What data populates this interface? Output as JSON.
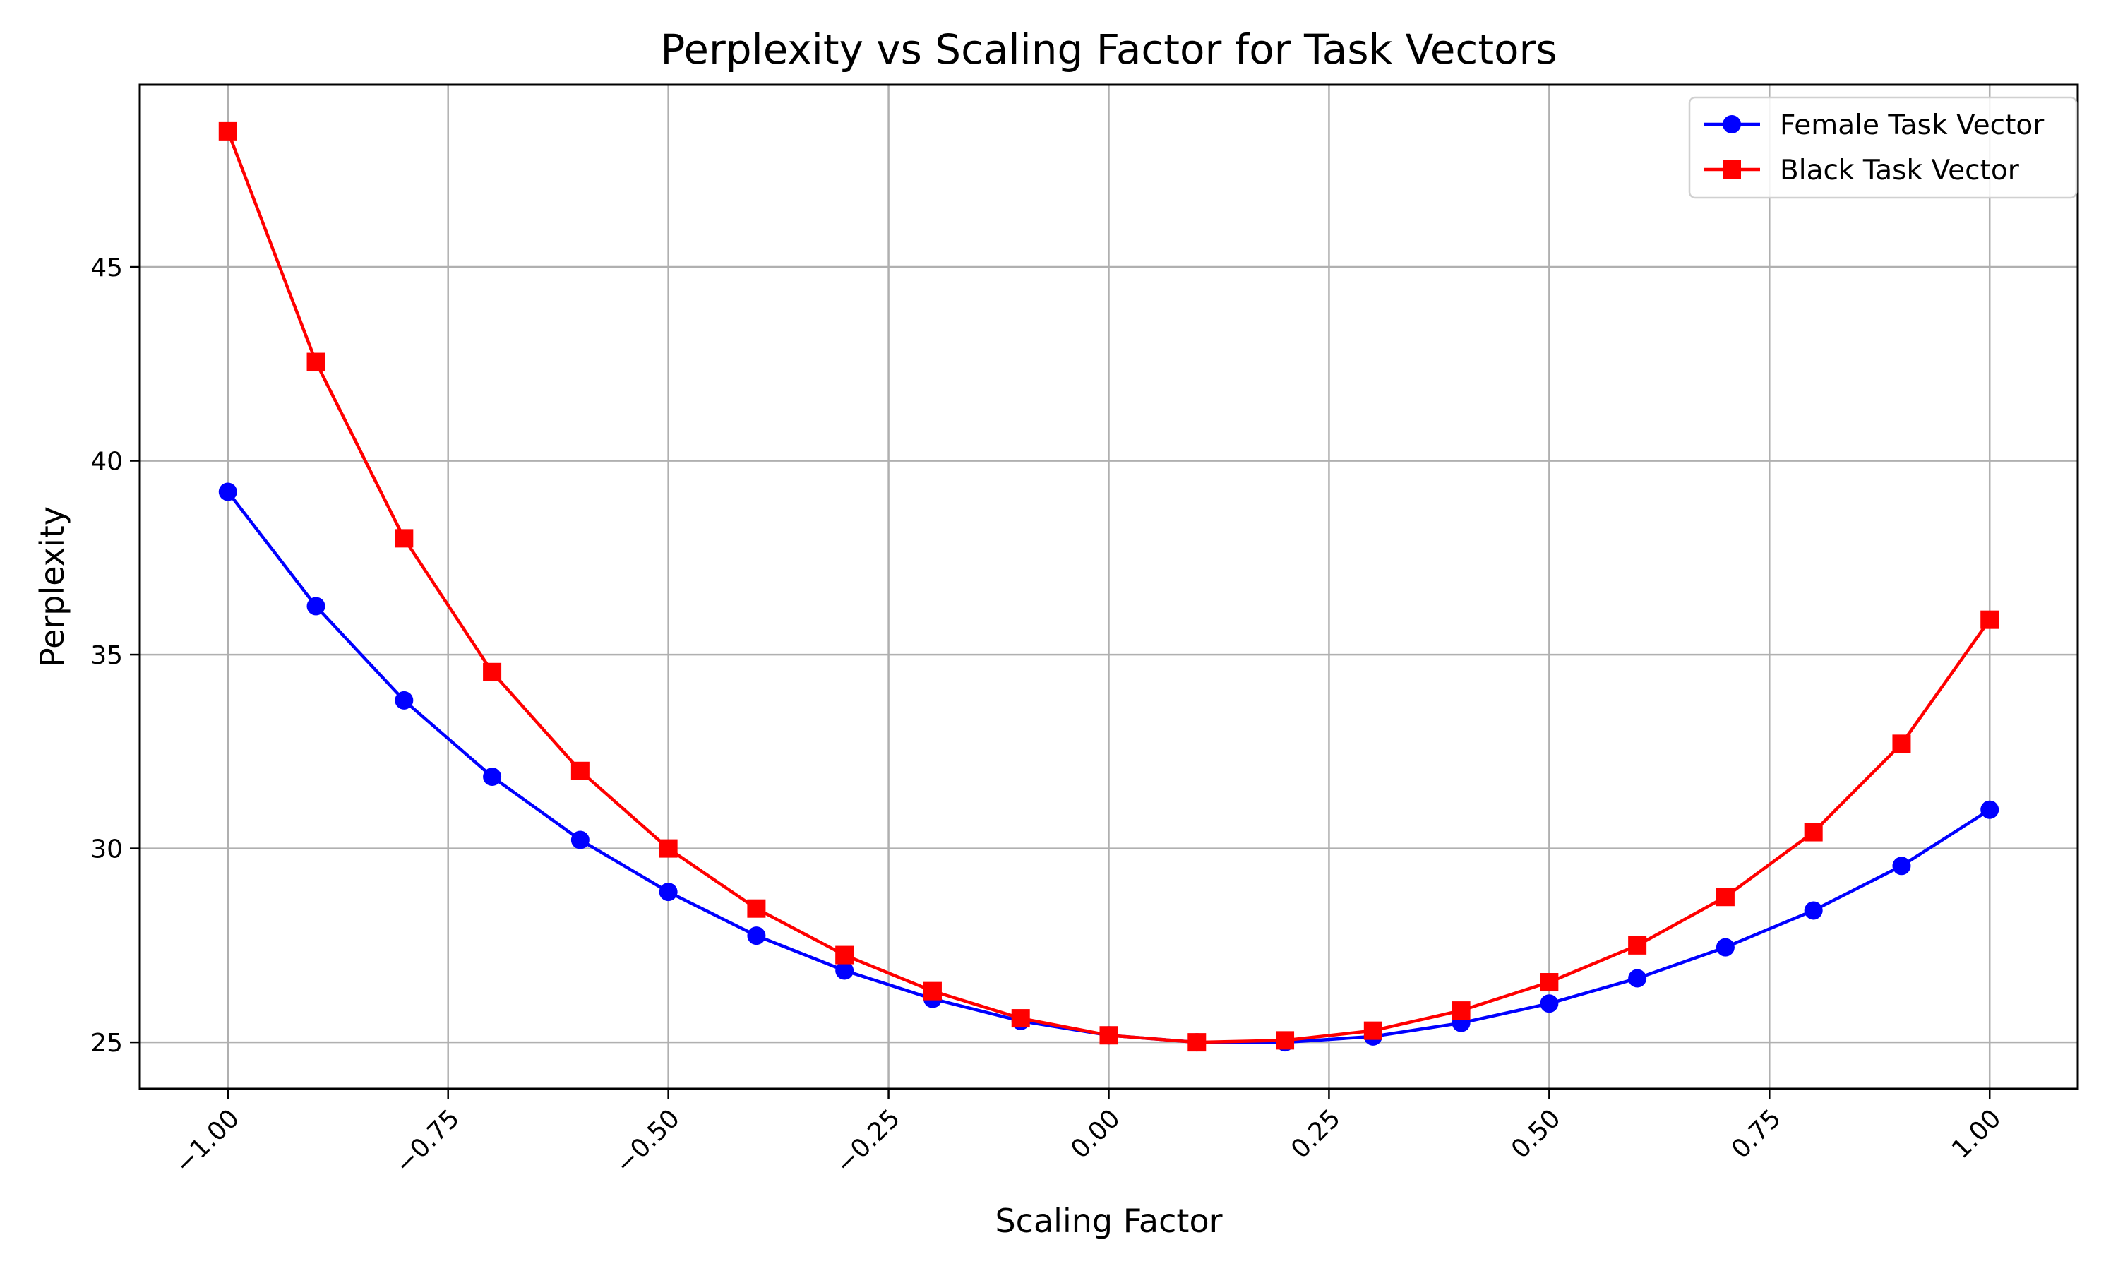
{
  "chart_data": {
    "type": "line",
    "title": "Perplexity vs Scaling Factor for Task Vectors",
    "xlabel": "Scaling Factor",
    "ylabel": "Perplexity",
    "xlim": [
      -1.1,
      1.1
    ],
    "ylim": [
      23.8,
      49.7
    ],
    "xticks": [
      -1.0,
      -0.75,
      -0.5,
      -0.25,
      0.0,
      0.25,
      0.5,
      0.75,
      1.0
    ],
    "xtick_labels": [
      "−1.00",
      "−0.75",
      "−0.50",
      "−0.25",
      "0.00",
      "0.25",
      "0.50",
      "0.75",
      "1.00"
    ],
    "yticks": [
      25,
      30,
      35,
      40,
      45
    ],
    "ytick_labels": [
      "25",
      "30",
      "35",
      "40",
      "45"
    ],
    "grid": true,
    "legend_position": "top-right",
    "x": [
      -1.0,
      -0.9,
      -0.8,
      -0.7,
      -0.6,
      -0.5,
      -0.4,
      -0.3,
      -0.2,
      -0.1,
      0.0,
      0.1,
      0.2,
      0.3,
      0.4,
      0.5,
      0.6,
      0.7,
      0.8,
      0.9,
      1.0
    ],
    "series": [
      {
        "name": "Female Task Vector",
        "color": "#0000ff",
        "marker": "circle",
        "values": [
          39.2,
          36.25,
          33.82,
          31.85,
          30.22,
          28.88,
          27.75,
          26.85,
          26.12,
          25.55,
          25.18,
          25.0,
          25.0,
          25.15,
          25.5,
          26.0,
          26.65,
          27.45,
          28.4,
          29.55,
          31.0
        ]
      },
      {
        "name": "Black Task Vector",
        "color": "#ff0000",
        "marker": "square",
        "values": [
          48.5,
          42.55,
          38.0,
          34.55,
          32.0,
          30.0,
          28.45,
          27.25,
          26.32,
          25.62,
          25.18,
          25.0,
          25.05,
          25.3,
          25.82,
          26.55,
          27.5,
          28.75,
          30.42,
          32.7,
          35.9
        ]
      }
    ]
  }
}
